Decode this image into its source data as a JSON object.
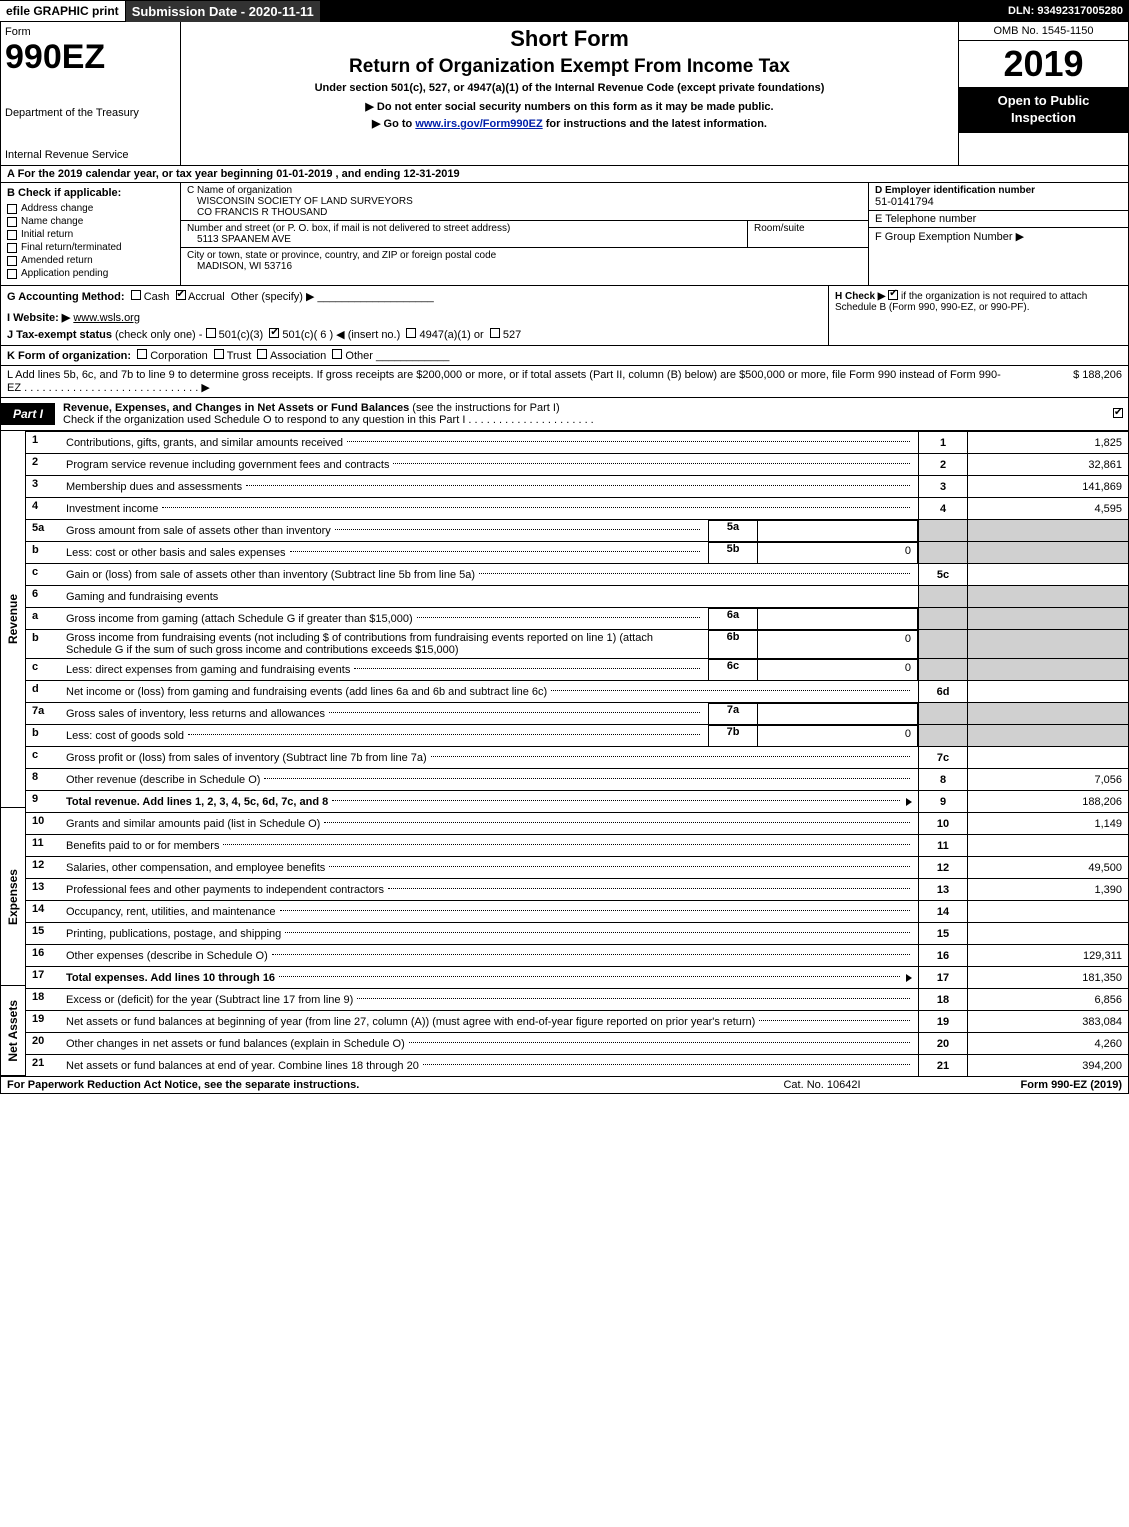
{
  "topbar": {
    "efile_label": "efile GRAPHIC print",
    "submission_label": "Submission Date - 2020-11-11",
    "dln_label": "DLN: 93492317005280"
  },
  "header": {
    "form_word": "Form",
    "form_num": "990EZ",
    "treasury": "Department of the Treasury",
    "irs": "Internal Revenue Service",
    "title1": "Short Form",
    "title2": "Return of Organization Exempt From Income Tax",
    "subtitle": "Under section 501(c), 527, or 4947(a)(1) of the Internal Revenue Code (except private foundations)",
    "note1": "▶ Do not enter social security numbers on this form as it may be made public.",
    "note2_pre": "▶ Go to ",
    "note2_link": "www.irs.gov/Form990EZ",
    "note2_post": " for instructions and the latest information.",
    "omb": "OMB No. 1545-1150",
    "year": "2019",
    "open": "Open to Public Inspection"
  },
  "section_a": "A For the 2019 calendar year, or tax year beginning 01-01-2019 , and ending 12-31-2019",
  "block_b": {
    "label": "B Check if applicable:",
    "items": [
      {
        "label": "Address change",
        "checked": false
      },
      {
        "label": "Name change",
        "checked": false
      },
      {
        "label": "Initial return",
        "checked": false
      },
      {
        "label": "Final return/terminated",
        "checked": false
      },
      {
        "label": "Amended return",
        "checked": false
      },
      {
        "label": "Application pending",
        "checked": false
      }
    ]
  },
  "block_c": {
    "c_label": "C Name of organization",
    "org_name": "WISCONSIN SOCIETY OF LAND SURVEYORS",
    "org_co": "CO FRANCIS R THOUSAND",
    "addr_label": "Number and street (or P. O. box, if mail is not delivered to street address)",
    "room_label": "Room/suite",
    "address": "5113 SPAANEM AVE",
    "city_label": "City or town, state or province, country, and ZIP or foreign postal code",
    "city": "MADISON, WI  53716"
  },
  "block_d": {
    "label": "D Employer identification number",
    "value": "51-0141794"
  },
  "block_e": {
    "label": "E Telephone number",
    "value": ""
  },
  "block_f": {
    "label": "F Group Exemption Number  ▶",
    "value": ""
  },
  "row_g": {
    "label": "G Accounting Method:",
    "cash": "Cash",
    "accrual": "Accrual",
    "other": "Other (specify) ▶"
  },
  "row_h": {
    "label": "H  Check ▶",
    "text": "if the organization is not required to attach Schedule B (Form 990, 990-EZ, or 990-PF).",
    "checked": true
  },
  "row_i": {
    "label": "I Website: ▶",
    "value": "www.wsls.org"
  },
  "row_j": {
    "label": "J Tax-exempt status",
    "small": "(check only one) -",
    "opt1": "501(c)(3)",
    "opt2": "501(c)( 6 ) ◀ (insert no.)",
    "opt3": "4947(a)(1) or",
    "opt4": "527",
    "checked_idx": 1
  },
  "row_k": {
    "label": "K Form of organization:",
    "corp": "Corporation",
    "trust": "Trust",
    "assoc": "Association",
    "other": "Other"
  },
  "row_l": {
    "text": "L Add lines 5b, 6c, and 7b to line 9 to determine gross receipts. If gross receipts are $200,000 or more, or if total assets (Part II, column (B) below) are $500,000 or more, file Form 990 instead of Form 990-EZ",
    "amount": "$ 188,206"
  },
  "part1": {
    "tag": "Part I",
    "title_bold": "Revenue, Expenses, and Changes in Net Assets or Fund Balances",
    "title_rest": " (see the instructions for Part I)",
    "check_line": "Check if the organization used Schedule O to respond to any question in this Part I",
    "check_checked": true
  },
  "side_labels": {
    "revenue": "Revenue",
    "expenses": "Expenses",
    "netassets": "Net Assets"
  },
  "lines": {
    "l1": {
      "n": "1",
      "d": "Contributions, gifts, grants, and similar amounts received",
      "box": "1",
      "amt": "1,825"
    },
    "l2": {
      "n": "2",
      "d": "Program service revenue including government fees and contracts",
      "box": "2",
      "amt": "32,861"
    },
    "l3": {
      "n": "3",
      "d": "Membership dues and assessments",
      "box": "3",
      "amt": "141,869"
    },
    "l4": {
      "n": "4",
      "d": "Investment income",
      "box": "4",
      "amt": "4,595"
    },
    "l5a": {
      "n": "5a",
      "d": "Gross amount from sale of assets other than inventory",
      "sub": "5a",
      "subamt": ""
    },
    "l5b": {
      "n": "b",
      "d": "Less: cost or other basis and sales expenses",
      "sub": "5b",
      "subamt": "0"
    },
    "l5c": {
      "n": "c",
      "d": "Gain or (loss) from sale of assets other than inventory (Subtract line 5b from line 5a)",
      "box": "5c",
      "amt": ""
    },
    "l6": {
      "n": "6",
      "d": "Gaming and fundraising events"
    },
    "l6a": {
      "n": "a",
      "d": "Gross income from gaming (attach Schedule G if greater than $15,000)",
      "sub": "6a",
      "subamt": ""
    },
    "l6b": {
      "n": "b",
      "d": "Gross income from fundraising events (not including $                    of contributions from fundraising events reported on line 1) (attach Schedule G if the sum of such gross income and contributions exceeds $15,000)",
      "sub": "6b",
      "subamt": "0"
    },
    "l6c": {
      "n": "c",
      "d": "Less: direct expenses from gaming and fundraising events",
      "sub": "6c",
      "subamt": "0"
    },
    "l6d": {
      "n": "d",
      "d": "Net income or (loss) from gaming and fundraising events (add lines 6a and 6b and subtract line 6c)",
      "box": "6d",
      "amt": ""
    },
    "l7a": {
      "n": "7a",
      "d": "Gross sales of inventory, less returns and allowances",
      "sub": "7a",
      "subamt": ""
    },
    "l7b": {
      "n": "b",
      "d": "Less: cost of goods sold",
      "sub": "7b",
      "subamt": "0"
    },
    "l7c": {
      "n": "c",
      "d": "Gross profit or (loss) from sales of inventory (Subtract line 7b from line 7a)",
      "box": "7c",
      "amt": ""
    },
    "l8": {
      "n": "8",
      "d": "Other revenue (describe in Schedule O)",
      "box": "8",
      "amt": "7,056"
    },
    "l9": {
      "n": "9",
      "d": "Total revenue. Add lines 1, 2, 3, 4, 5c, 6d, 7c, and 8",
      "box": "9",
      "amt": "188,206",
      "bold": true
    },
    "l10": {
      "n": "10",
      "d": "Grants and similar amounts paid (list in Schedule O)",
      "box": "10",
      "amt": "1,149"
    },
    "l11": {
      "n": "11",
      "d": "Benefits paid to or for members",
      "box": "11",
      "amt": ""
    },
    "l12": {
      "n": "12",
      "d": "Salaries, other compensation, and employee benefits",
      "box": "12",
      "amt": "49,500"
    },
    "l13": {
      "n": "13",
      "d": "Professional fees and other payments to independent contractors",
      "box": "13",
      "amt": "1,390"
    },
    "l14": {
      "n": "14",
      "d": "Occupancy, rent, utilities, and maintenance",
      "box": "14",
      "amt": ""
    },
    "l15": {
      "n": "15",
      "d": "Printing, publications, postage, and shipping",
      "box": "15",
      "amt": ""
    },
    "l16": {
      "n": "16",
      "d": "Other expenses (describe in Schedule O)",
      "box": "16",
      "amt": "129,311"
    },
    "l17": {
      "n": "17",
      "d": "Total expenses. Add lines 10 through 16",
      "box": "17",
      "amt": "181,350",
      "bold": true
    },
    "l18": {
      "n": "18",
      "d": "Excess or (deficit) for the year (Subtract line 17 from line 9)",
      "box": "18",
      "amt": "6,856"
    },
    "l19": {
      "n": "19",
      "d": "Net assets or fund balances at beginning of year (from line 27, column (A)) (must agree with end-of-year figure reported on prior year's return)",
      "box": "19",
      "amt": "383,084"
    },
    "l20": {
      "n": "20",
      "d": "Other changes in net assets or fund balances (explain in Schedule O)",
      "box": "20",
      "amt": "4,260"
    },
    "l21": {
      "n": "21",
      "d": "Net assets or fund balances at end of year. Combine lines 18 through 20",
      "box": "21",
      "amt": "394,200"
    }
  },
  "footer": {
    "left": "For Paperwork Reduction Act Notice, see the separate instructions.",
    "mid": "Cat. No. 10642I",
    "right": "Form 990-EZ (2019)"
  }
}
